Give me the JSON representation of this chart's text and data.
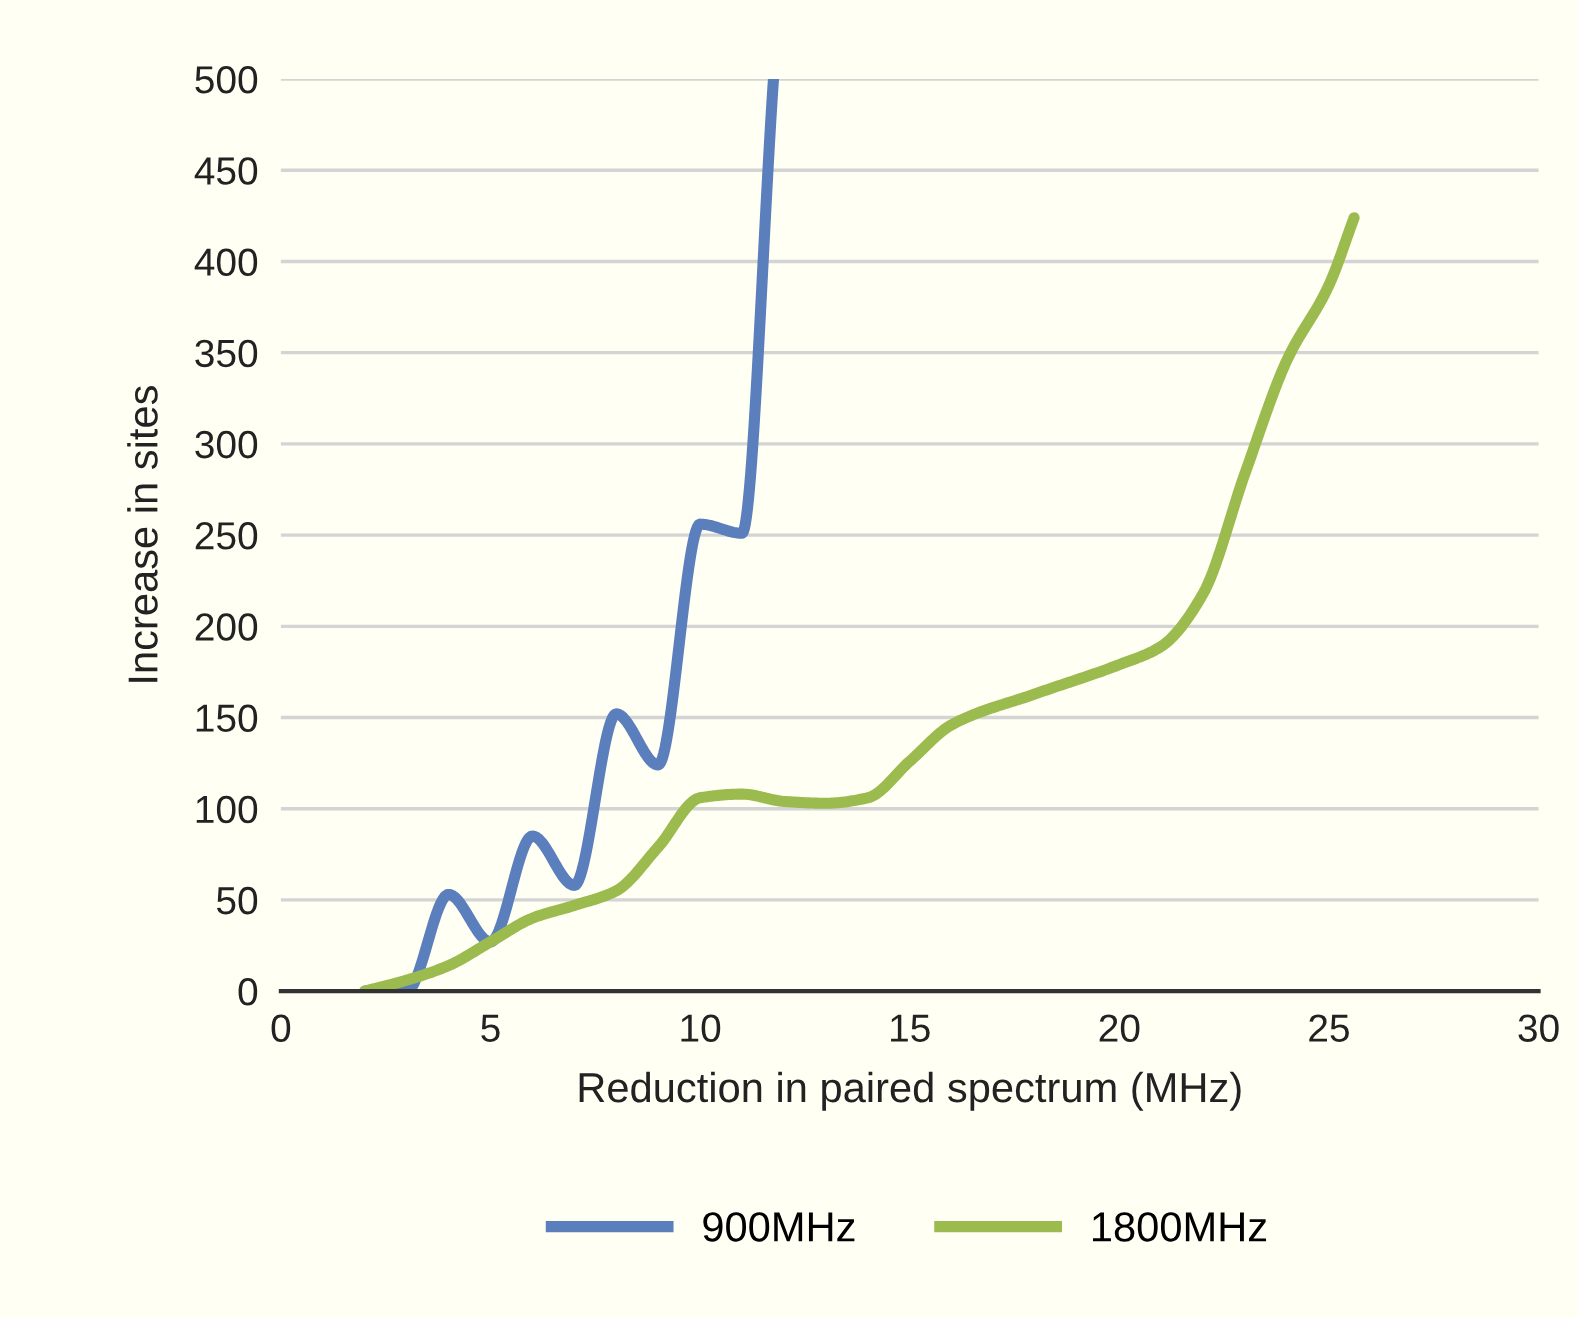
{
  "chart_data": {
    "type": "line",
    "xlabel": "Reduction in paired spectrum (MHz)",
    "ylabel": "Increase in sites",
    "xlim": [
      0,
      30
    ],
    "xticks": [
      0,
      5,
      10,
      15,
      20,
      25,
      30
    ],
    "ylim": [
      0,
      500
    ],
    "yticks": [
      0,
      50,
      100,
      150,
      200,
      250,
      300,
      350,
      400,
      450,
      500
    ],
    "grid": "y",
    "legend": "bottom",
    "marker": "none",
    "line_style": "solid",
    "series": [
      {
        "name": "900MHz",
        "color": "#5b7fbc",
        "x": [
          2,
          3,
          4,
          5,
          6,
          7,
          8,
          9,
          10,
          11,
          11.75
        ],
        "values": [
          0,
          0,
          53,
          27,
          85,
          58,
          152,
          124,
          256,
          251,
          500
        ]
      },
      {
        "name": "1800MHz",
        "color": "#9bbb4f",
        "x": [
          2,
          3,
          4,
          5,
          6,
          7,
          8,
          9,
          10,
          11,
          12,
          13,
          14,
          15,
          16,
          18,
          20,
          21,
          22,
          23,
          24,
          25,
          25.6
        ],
        "values": [
          0,
          6,
          14,
          27,
          40,
          47,
          55,
          79,
          106,
          108,
          104,
          103,
          106,
          126,
          146,
          163,
          179,
          189,
          218,
          284,
          346,
          387,
          424
        ]
      }
    ]
  }
}
